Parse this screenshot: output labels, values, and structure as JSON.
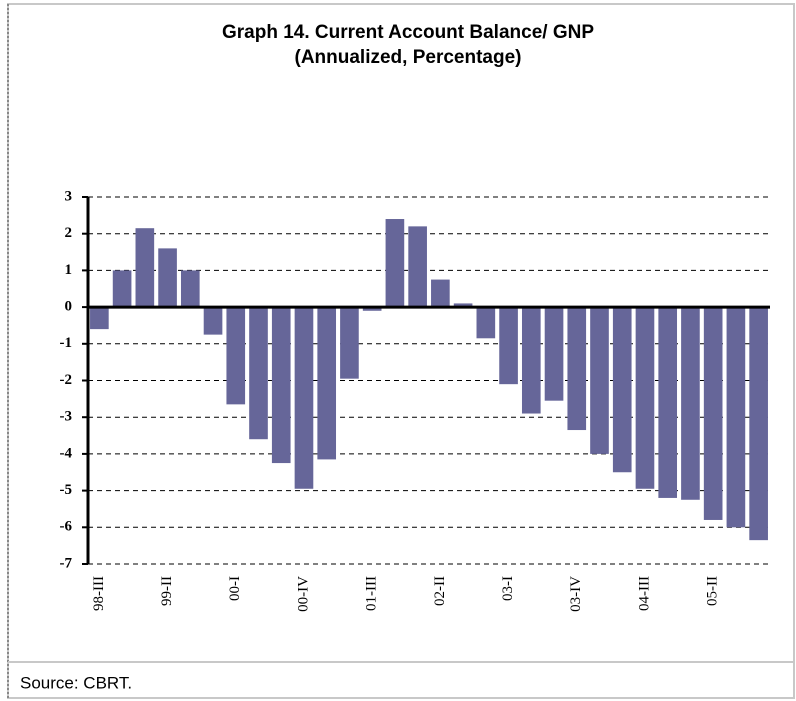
{
  "chart_data": {
    "type": "bar",
    "title": "Graph 14. Current Account Balance/ GNP",
    "subtitle": "(Annualized, Percentage)",
    "source": "Source: CBRT.",
    "categories": [
      "98-III",
      null,
      null,
      "99-II",
      null,
      null,
      "00-I",
      null,
      null,
      "00-IV",
      null,
      null,
      "01-III",
      null,
      null,
      "02-II",
      null,
      null,
      "03-I",
      null,
      null,
      "03-IV",
      null,
      null,
      "04-III",
      null,
      null,
      "05-II",
      null,
      null
    ],
    "values": [
      -0.6,
      1.0,
      2.15,
      1.6,
      1.0,
      -0.75,
      -2.65,
      -3.6,
      -4.25,
      -4.95,
      -4.15,
      -1.95,
      -0.1,
      2.4,
      2.2,
      0.75,
      0.1,
      -0.85,
      -2.1,
      -2.9,
      -2.55,
      -3.35,
      -4.0,
      -4.5,
      -4.95,
      -5.2,
      -5.25,
      -5.8,
      -6.0,
      -6.35
    ],
    "color": "#666699",
    "ylim": [
      -7,
      3
    ],
    "yticks": [
      -7,
      -6,
      -5,
      -4,
      -3,
      -2,
      -1,
      0,
      1,
      2,
      3
    ],
    "grid": true
  }
}
